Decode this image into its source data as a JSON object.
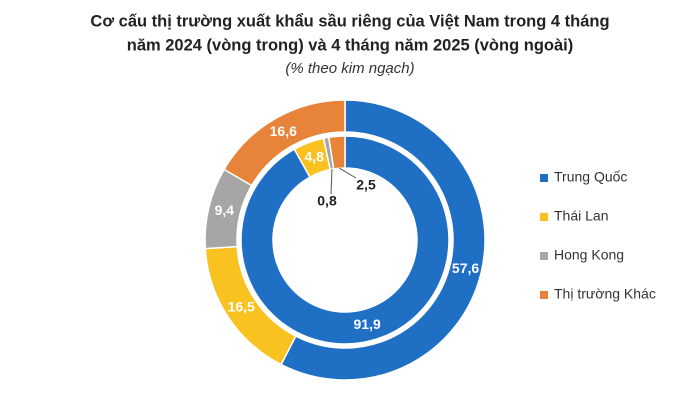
{
  "chart_data": {
    "type": "donut",
    "title": [
      "Cơ cấu thị trường xuất khẩu sầu riêng của Việt Nam trong 4 tháng",
      "năm 2024 (vòng trong) và 4 tháng năm 2025 (vòng ngoài)"
    ],
    "subtitle": "(% theo kim ngạch)",
    "categories": [
      "Trung Quốc",
      "Thái Lan",
      "Hong Kong",
      "Thị trường Khác"
    ],
    "colors": [
      "#1f6fc5",
      "#f9c220",
      "#a6a6a6",
      "#e8833a"
    ],
    "series": [
      {
        "values": [
          91.9,
          4.8,
          0.8,
          2.5
        ],
        "value_labels": [
          "91,9",
          "4,8",
          "0,8",
          "2,5"
        ]
      },
      {
        "values": [
          57.6,
          16.5,
          9.4,
          16.6
        ],
        "value_labels": [
          "57,6",
          "16,5",
          "9,4",
          "16,6"
        ]
      }
    ],
    "legend": "right"
  }
}
